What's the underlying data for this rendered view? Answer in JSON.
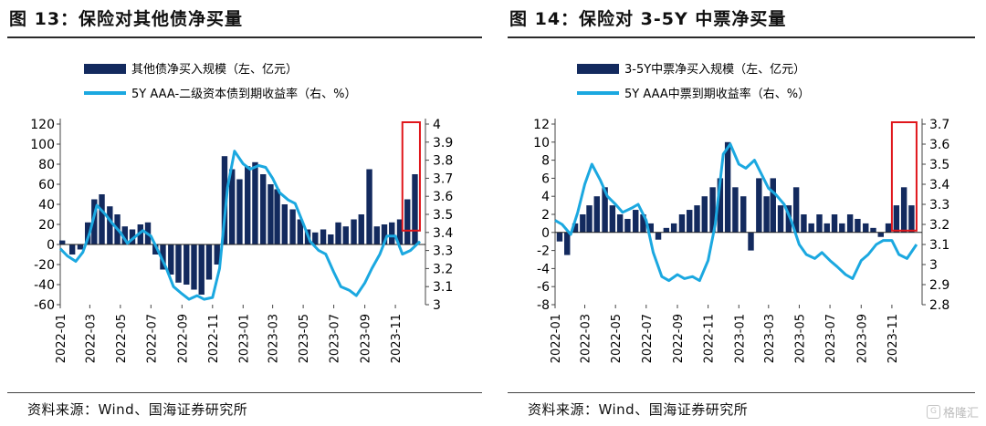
{
  "left": {
    "title": "图 13：保险对其他债净买量",
    "source": "资料来源：Wind、国海证券研究所"
  },
  "right": {
    "title": "图 14：保险对 3-5Y 中票净买量",
    "source": "资料来源：Wind、国海证券研究所"
  },
  "watermark": "格隆汇",
  "colors": {
    "bar": "#132a5e",
    "line": "#1ba8e0",
    "highlight": "#e0161b"
  },
  "chart_data": [
    {
      "type": "bar",
      "legend": [
        "其他债净买入规模（左、亿元）",
        "5Y AAA-二级资本债到期收益率（右、%）"
      ],
      "ylim": [
        -60,
        120
      ],
      "yticks": [
        -60,
        -40,
        -20,
        0,
        20,
        40,
        60,
        80,
        100,
        120
      ],
      "y2lim": [
        3.0,
        4.0
      ],
      "y2ticks": [
        "3",
        "3.1",
        "3.2",
        "3.3",
        "3.4",
        "3.5",
        "3.6",
        "3.7",
        "3.8",
        "3.9",
        "4"
      ],
      "xticks": [
        "2022-01",
        "2022-03",
        "2022-05",
        "2022-07",
        "2022-09",
        "2022-11",
        "2023-01",
        "2023-03",
        "2023-05",
        "2023-07",
        "2023-09",
        "2023-11"
      ],
      "highlight_range": [
        "2023-11-15",
        "2023-12-20"
      ],
      "series": [
        {
          "name": "其他债净买入规模（左、亿元）",
          "kind": "bar",
          "axis": "left",
          "points": [
            [
              "2022-01-05",
              4
            ],
            [
              "2022-01-25",
              -10
            ],
            [
              "2022-02-10",
              -5
            ],
            [
              "2022-02-25",
              22
            ],
            [
              "2022-03-10",
              45
            ],
            [
              "2022-03-25",
              50
            ],
            [
              "2022-04-10",
              38
            ],
            [
              "2022-04-25",
              30
            ],
            [
              "2022-05-10",
              18
            ],
            [
              "2022-05-25",
              15
            ],
            [
              "2022-06-10",
              20
            ],
            [
              "2022-06-25",
              22
            ],
            [
              "2022-07-10",
              -10
            ],
            [
              "2022-07-25",
              -25
            ],
            [
              "2022-08-10",
              -30
            ],
            [
              "2022-08-25",
              -38
            ],
            [
              "2022-09-10",
              -40
            ],
            [
              "2022-09-25",
              -45
            ],
            [
              "2022-10-10",
              -50
            ],
            [
              "2022-10-25",
              -35
            ],
            [
              "2022-11-10",
              -20
            ],
            [
              "2022-11-25",
              88
            ],
            [
              "2022-12-10",
              75
            ],
            [
              "2022-12-25",
              65
            ],
            [
              "2023-01-10",
              78
            ],
            [
              "2023-01-25",
              82
            ],
            [
              "2023-02-10",
              70
            ],
            [
              "2023-02-25",
              60
            ],
            [
              "2023-03-10",
              55
            ],
            [
              "2023-03-25",
              40
            ],
            [
              "2023-04-10",
              35
            ],
            [
              "2023-04-25",
              25
            ],
            [
              "2023-05-10",
              15
            ],
            [
              "2023-05-25",
              12
            ],
            [
              "2023-06-10",
              15
            ],
            [
              "2023-06-25",
              10
            ],
            [
              "2023-07-10",
              22
            ],
            [
              "2023-07-25",
              18
            ],
            [
              "2023-08-10",
              25
            ],
            [
              "2023-08-25",
              30
            ],
            [
              "2023-09-10",
              75
            ],
            [
              "2023-09-25",
              18
            ],
            [
              "2023-10-10",
              20
            ],
            [
              "2023-10-25",
              22
            ],
            [
              "2023-11-10",
              25
            ],
            [
              "2023-11-25",
              45
            ],
            [
              "2023-12-10",
              70
            ]
          ]
        },
        {
          "name": "5Y AAA-二级资本债到期收益率（右、%）",
          "kind": "line",
          "axis": "right",
          "points": [
            [
              "2022-01-01",
              3.31
            ],
            [
              "2022-01-15",
              3.27
            ],
            [
              "2022-02-01",
              3.24
            ],
            [
              "2022-02-15",
              3.29
            ],
            [
              "2022-03-01",
              3.4
            ],
            [
              "2022-03-15",
              3.55
            ],
            [
              "2022-04-01",
              3.5
            ],
            [
              "2022-04-15",
              3.45
            ],
            [
              "2022-05-01",
              3.4
            ],
            [
              "2022-05-15",
              3.34
            ],
            [
              "2022-06-01",
              3.38
            ],
            [
              "2022-06-15",
              3.41
            ],
            [
              "2022-07-01",
              3.38
            ],
            [
              "2022-07-15",
              3.3
            ],
            [
              "2022-08-01",
              3.2
            ],
            [
              "2022-08-15",
              3.1
            ],
            [
              "2022-09-01",
              3.06
            ],
            [
              "2022-09-15",
              3.03
            ],
            [
              "2022-10-01",
              3.05
            ],
            [
              "2022-10-15",
              3.03
            ],
            [
              "2022-11-01",
              3.04
            ],
            [
              "2022-11-15",
              3.2
            ],
            [
              "2022-12-01",
              3.65
            ],
            [
              "2022-12-15",
              3.85
            ],
            [
              "2023-01-01",
              3.78
            ],
            [
              "2023-01-15",
              3.75
            ],
            [
              "2023-02-01",
              3.77
            ],
            [
              "2023-02-15",
              3.76
            ],
            [
              "2023-03-01",
              3.7
            ],
            [
              "2023-03-15",
              3.62
            ],
            [
              "2023-04-01",
              3.58
            ],
            [
              "2023-04-15",
              3.56
            ],
            [
              "2023-05-01",
              3.45
            ],
            [
              "2023-05-15",
              3.35
            ],
            [
              "2023-06-01",
              3.3
            ],
            [
              "2023-06-15",
              3.28
            ],
            [
              "2023-07-01",
              3.18
            ],
            [
              "2023-07-15",
              3.1
            ],
            [
              "2023-08-01",
              3.08
            ],
            [
              "2023-08-15",
              3.05
            ],
            [
              "2023-09-01",
              3.12
            ],
            [
              "2023-09-15",
              3.2
            ],
            [
              "2023-10-01",
              3.28
            ],
            [
              "2023-10-15",
              3.38
            ],
            [
              "2023-11-01",
              3.38
            ],
            [
              "2023-11-15",
              3.28
            ],
            [
              "2023-12-01",
              3.3
            ],
            [
              "2023-12-20",
              3.35
            ]
          ]
        }
      ]
    },
    {
      "type": "bar",
      "legend": [
        "3-5Y中票净买入规模（左、亿元）",
        "5Y AAA中票到期收益率（右、%）"
      ],
      "ylim": [
        -8,
        12
      ],
      "yticks": [
        -8,
        -6,
        -4,
        -2,
        0,
        2,
        4,
        6,
        8,
        10,
        12
      ],
      "y2lim": [
        2.8,
        3.7
      ],
      "y2ticks": [
        "2.8",
        "2.9",
        "3",
        "3.1",
        "3.2",
        "3.3",
        "3.4",
        "3.5",
        "3.6",
        "3.7"
      ],
      "xticks": [
        "2022-01",
        "2022-03",
        "2022-05",
        "2022-07",
        "2022-09",
        "2022-11",
        "2023-01",
        "2023-03",
        "2023-05",
        "2023-07",
        "2023-09",
        "2023-11"
      ],
      "highlight_range": [
        "2023-11-01",
        "2023-12-20"
      ],
      "series": [
        {
          "name": "3-5Y中票净买入规模（左、亿元）",
          "kind": "bar",
          "axis": "left",
          "points": [
            [
              "2022-01-10",
              -1
            ],
            [
              "2022-01-25",
              -2.5
            ],
            [
              "2022-02-10",
              1
            ],
            [
              "2022-02-25",
              2
            ],
            [
              "2022-03-10",
              3
            ],
            [
              "2022-03-25",
              4
            ],
            [
              "2022-04-10",
              5
            ],
            [
              "2022-04-25",
              3
            ],
            [
              "2022-05-10",
              2
            ],
            [
              "2022-05-25",
              1.5
            ],
            [
              "2022-06-10",
              2.5
            ],
            [
              "2022-06-25",
              2
            ],
            [
              "2022-07-10",
              1
            ],
            [
              "2022-07-25",
              -0.8
            ],
            [
              "2022-08-10",
              0.5
            ],
            [
              "2022-08-25",
              1
            ],
            [
              "2022-09-10",
              2
            ],
            [
              "2022-09-25",
              2.5
            ],
            [
              "2022-10-10",
              3
            ],
            [
              "2022-10-25",
              4
            ],
            [
              "2022-11-10",
              5
            ],
            [
              "2022-11-25",
              6
            ],
            [
              "2022-12-10",
              10
            ],
            [
              "2022-12-25",
              5
            ],
            [
              "2023-01-10",
              4
            ],
            [
              "2023-01-25",
              -2
            ],
            [
              "2023-02-10",
              6
            ],
            [
              "2023-02-25",
              4
            ],
            [
              "2023-03-10",
              6
            ],
            [
              "2023-03-25",
              3
            ],
            [
              "2023-04-10",
              3
            ],
            [
              "2023-04-25",
              5
            ],
            [
              "2023-05-10",
              2
            ],
            [
              "2023-05-25",
              1
            ],
            [
              "2023-06-10",
              2
            ],
            [
              "2023-06-25",
              1
            ],
            [
              "2023-07-10",
              2
            ],
            [
              "2023-07-25",
              1
            ],
            [
              "2023-08-10",
              2
            ],
            [
              "2023-08-25",
              1.5
            ],
            [
              "2023-09-10",
              1
            ],
            [
              "2023-09-25",
              0.5
            ],
            [
              "2023-10-10",
              -0.5
            ],
            [
              "2023-10-25",
              1
            ],
            [
              "2023-11-10",
              3
            ],
            [
              "2023-11-25",
              5
            ],
            [
              "2023-12-10",
              3
            ]
          ]
        },
        {
          "name": "5Y AAA中票到期收益率（右、%）",
          "kind": "line",
          "axis": "right",
          "points": [
            [
              "2022-01-01",
              3.22
            ],
            [
              "2022-01-15",
              3.2
            ],
            [
              "2022-02-01",
              3.15
            ],
            [
              "2022-02-15",
              3.26
            ],
            [
              "2022-03-01",
              3.4
            ],
            [
              "2022-03-15",
              3.5
            ],
            [
              "2022-04-01",
              3.42
            ],
            [
              "2022-04-15",
              3.34
            ],
            [
              "2022-05-01",
              3.3
            ],
            [
              "2022-05-15",
              3.26
            ],
            [
              "2022-06-01",
              3.28
            ],
            [
              "2022-06-15",
              3.3
            ],
            [
              "2022-07-01",
              3.22
            ],
            [
              "2022-07-15",
              3.06
            ],
            [
              "2022-08-01",
              2.94
            ],
            [
              "2022-08-15",
              2.92
            ],
            [
              "2022-09-01",
              2.95
            ],
            [
              "2022-09-15",
              2.93
            ],
            [
              "2022-10-01",
              2.94
            ],
            [
              "2022-10-15",
              2.92
            ],
            [
              "2022-11-01",
              3.02
            ],
            [
              "2022-11-15",
              3.2
            ],
            [
              "2022-12-01",
              3.55
            ],
            [
              "2022-12-15",
              3.6
            ],
            [
              "2023-01-01",
              3.5
            ],
            [
              "2023-01-15",
              3.48
            ],
            [
              "2023-02-01",
              3.52
            ],
            [
              "2023-02-15",
              3.45
            ],
            [
              "2023-03-01",
              3.38
            ],
            [
              "2023-03-15",
              3.35
            ],
            [
              "2023-04-01",
              3.3
            ],
            [
              "2023-04-15",
              3.22
            ],
            [
              "2023-05-01",
              3.1
            ],
            [
              "2023-05-15",
              3.05
            ],
            [
              "2023-06-01",
              3.03
            ],
            [
              "2023-06-15",
              3.06
            ],
            [
              "2023-07-01",
              3.02
            ],
            [
              "2023-07-15",
              2.99
            ],
            [
              "2023-08-01",
              2.95
            ],
            [
              "2023-08-15",
              2.93
            ],
            [
              "2023-09-01",
              3.02
            ],
            [
              "2023-09-15",
              3.05
            ],
            [
              "2023-10-01",
              3.1
            ],
            [
              "2023-10-15",
              3.12
            ],
            [
              "2023-11-01",
              3.12
            ],
            [
              "2023-11-15",
              3.05
            ],
            [
              "2023-12-01",
              3.03
            ],
            [
              "2023-12-20",
              3.1
            ]
          ]
        }
      ]
    }
  ]
}
